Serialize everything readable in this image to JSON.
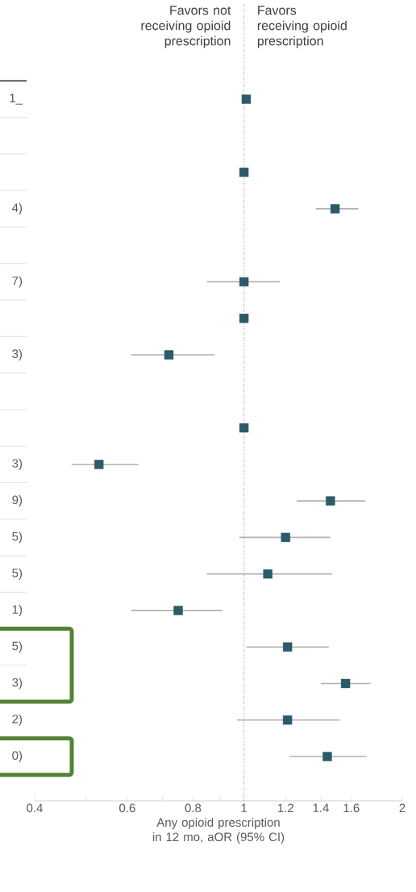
{
  "chart_data": {
    "type": "scatter",
    "orientation": "horizontal",
    "xlabel": "Any opioid prescription in 12 mo, aOR (95% CI)",
    "annotations": [
      "Favors not receiving opioid prescription",
      "Favors receiving opioid prescription"
    ],
    "categories": [
      "1_",
      null,
      null,
      "4)",
      null,
      "7)",
      null,
      "3)",
      null,
      null,
      "3)",
      "9)",
      "5)",
      "5)",
      "1)",
      "5)",
      "3)",
      "2)",
      "0)"
    ],
    "series": [
      {
        "color": "#2b5a68",
        "values": [
          1.01,
          null,
          1.0,
          1.49,
          null,
          1.0,
          1.0,
          0.72,
          null,
          1.0,
          0.53,
          1.46,
          1.2,
          1.11,
          0.75,
          1.21,
          1.56,
          1.21,
          1.44
        ],
        "errors": [
          null,
          null,
          null,
          [
            1.37,
            1.65
          ],
          null,
          [
            0.85,
            1.17
          ],
          null,
          [
            0.61,
            0.88
          ],
          null,
          null,
          [
            0.47,
            0.63
          ],
          [
            1.26,
            1.7
          ],
          [
            0.98,
            1.46
          ],
          [
            0.85,
            1.47
          ],
          [
            0.61,
            0.91
          ],
          [
            1.01,
            1.45
          ],
          [
            1.4,
            1.74
          ],
          [
            0.97,
            1.52
          ],
          [
            1.22,
            1.71
          ]
        ]
      }
    ],
    "log": "x",
    "xlim": [
      0.4,
      2
    ],
    "xticks": [
      0.4,
      {
        "value": 0.5,
        "label": null
      },
      0.6,
      {
        "value": 0.7,
        "label": null
      },
      0.8,
      {
        "value": 0.9,
        "label": null
      },
      1,
      1.2,
      1.4,
      1.6,
      2
    ],
    "marker": "square",
    "grid": false,
    "ref_lines": [
      {
        "axis": "x",
        "value": 1,
        "line_style": "dotted",
        "color": "#9a9a9a"
      }
    ]
  }
}
